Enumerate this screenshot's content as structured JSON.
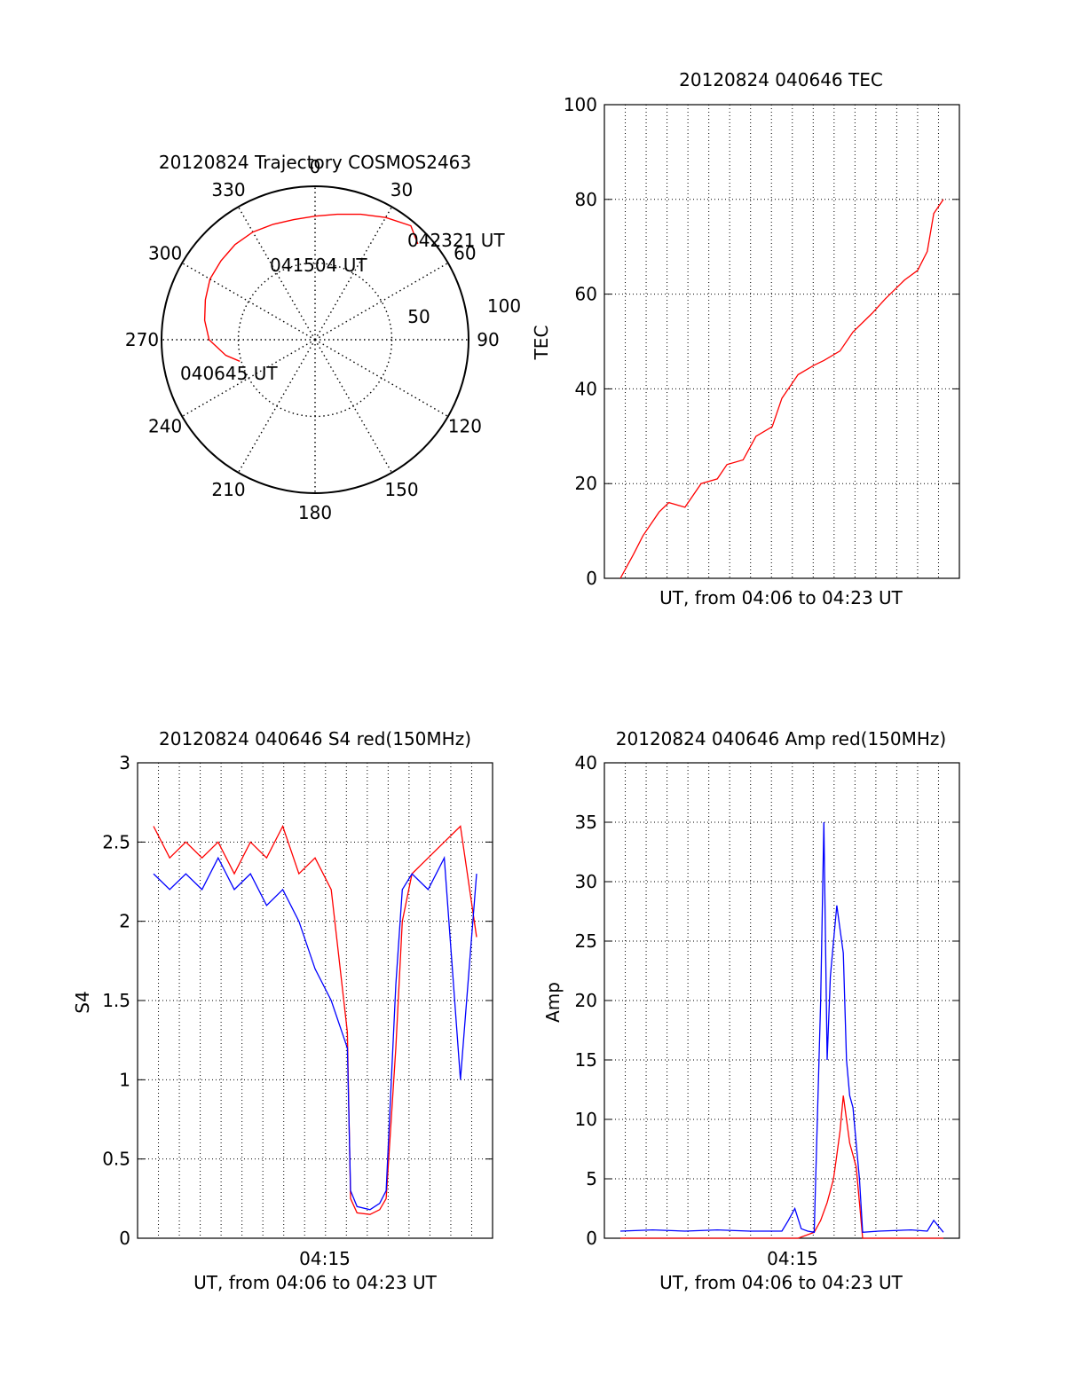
{
  "colors": {
    "red": "#ff0000",
    "blue": "#0000ff",
    "axis": "#000000",
    "grid": "#000000"
  },
  "chart_data": [
    {
      "type": "polar",
      "title": "20120824 Trajectory COSMOS2463",
      "angle_ticks": [
        "0",
        "30",
        "60",
        "90",
        "120",
        "150",
        "180",
        "210",
        "240",
        "270",
        "300",
        "330"
      ],
      "radius_labels": [
        "50",
        "100"
      ],
      "rlim": [
        0,
        100
      ],
      "grid": true,
      "series": [
        {
          "color": "red",
          "azimuth": [
            47,
            40,
            30,
            20,
            10,
            0,
            -10,
            -20,
            -30,
            -40,
            -50,
            -60,
            -70,
            -80,
            -90,
            -100,
            -106
          ],
          "elevation_offset": [
            8.5,
            3.0,
            8.0,
            13.0,
            17.0,
            19.5,
            20.5,
            20.0,
            19.0,
            19.0,
            20.0,
            21.0,
            24.0,
            27.0,
            31.0,
            41.0,
            49.0
          ]
        }
      ],
      "annotations": [
        "042321 UT",
        "041504 UT",
        "040645 UT"
      ]
    },
    {
      "type": "line",
      "title": "20120824 040646 TEC",
      "xlabel": "UT, from 04:06 to 04:23 UT",
      "ylabel": "TEC",
      "ylim": [
        0,
        100
      ],
      "yticks": [
        "0",
        "20",
        "40",
        "60",
        "80",
        "100"
      ],
      "grid": true,
      "series": [
        {
          "color": "red",
          "x": [
            0.0,
            0.04,
            0.07,
            0.12,
            0.15,
            0.2,
            0.25,
            0.3,
            0.33,
            0.38,
            0.42,
            0.47,
            0.5,
            0.55,
            0.6,
            0.63,
            0.68,
            0.72,
            0.78,
            0.82,
            0.88,
            0.92,
            0.95,
            0.97,
            1.0
          ],
          "y": [
            0,
            5,
            9,
            14,
            16,
            15,
            20,
            21,
            24,
            25,
            30,
            32,
            38,
            43,
            45,
            46,
            48,
            52,
            56,
            59,
            63,
            65,
            69,
            77,
            80
          ]
        }
      ]
    },
    {
      "type": "line",
      "title": "20120824 040646 S4 red(150MHz)",
      "xlabel": "UT, from 04:06 to 04:23 UT",
      "ylabel": "S4",
      "ylim": [
        0,
        3
      ],
      "yticks": [
        "0",
        "0.5",
        "1",
        "1.5",
        "2",
        "2.5",
        "3"
      ],
      "xticks": [
        "04:15"
      ],
      "grid": true,
      "series": [
        {
          "color": "red",
          "x": [
            0.0,
            0.05,
            0.1,
            0.15,
            0.2,
            0.25,
            0.3,
            0.35,
            0.4,
            0.45,
            0.5,
            0.55,
            0.6,
            0.61,
            0.63,
            0.67,
            0.7,
            0.72,
            0.75,
            0.77,
            0.8,
            0.85,
            0.9,
            0.95,
            1.0
          ],
          "y": [
            2.6,
            2.4,
            2.5,
            2.4,
            2.5,
            2.3,
            2.5,
            2.4,
            2.6,
            2.3,
            2.4,
            2.2,
            1.3,
            0.25,
            0.16,
            0.15,
            0.18,
            0.25,
            1.2,
            2.0,
            2.3,
            2.4,
            2.5,
            2.6,
            1.9
          ]
        },
        {
          "color": "blue",
          "x": [
            0.0,
            0.05,
            0.1,
            0.15,
            0.2,
            0.25,
            0.3,
            0.35,
            0.4,
            0.45,
            0.5,
            0.55,
            0.6,
            0.61,
            0.63,
            0.67,
            0.7,
            0.72,
            0.75,
            0.77,
            0.8,
            0.85,
            0.9,
            0.95,
            1.0
          ],
          "y": [
            2.3,
            2.2,
            2.3,
            2.2,
            2.4,
            2.2,
            2.3,
            2.1,
            2.2,
            2.0,
            1.7,
            1.5,
            1.2,
            0.3,
            0.2,
            0.18,
            0.22,
            0.3,
            1.6,
            2.2,
            2.3,
            2.2,
            2.4,
            1.0,
            2.3
          ]
        }
      ]
    },
    {
      "type": "line",
      "title": "20120824 040646 Amp red(150MHz)",
      "xlabel": "UT, from 04:06 to 04:23 UT",
      "ylabel": "Amp",
      "ylim": [
        0,
        40
      ],
      "yticks": [
        "0",
        "5",
        "10",
        "15",
        "20",
        "25",
        "30",
        "35",
        "40"
      ],
      "xticks": [
        "04:15"
      ],
      "grid": true,
      "series": [
        {
          "color": "red",
          "x": [
            0.0,
            0.55,
            0.6,
            0.62,
            0.64,
            0.65,
            0.66,
            0.67,
            0.68,
            0.69,
            0.7,
            0.71,
            0.72,
            0.73,
            0.74,
            0.75,
            1.0
          ],
          "y": [
            0,
            0,
            0.5,
            1.5,
            3,
            4,
            5,
            7,
            9,
            12,
            10,
            8,
            7,
            6,
            3,
            0,
            0
          ]
        },
        {
          "color": "blue",
          "x": [
            0.0,
            0.1,
            0.2,
            0.3,
            0.4,
            0.5,
            0.52,
            0.54,
            0.56,
            0.58,
            0.6,
            0.62,
            0.63,
            0.64,
            0.65,
            0.66,
            0.67,
            0.68,
            0.69,
            0.7,
            0.71,
            0.72,
            0.73,
            0.74,
            0.75,
            0.8,
            0.9,
            0.95,
            0.97,
            1.0
          ],
          "y": [
            0.6,
            0.7,
            0.6,
            0.7,
            0.6,
            0.6,
            1.5,
            2.5,
            0.8,
            0.6,
            0.5,
            20,
            35,
            15,
            22,
            25,
            28,
            26,
            24,
            15,
            12,
            11,
            8,
            5,
            0.5,
            0.6,
            0.7,
            0.6,
            1.5,
            0.5
          ]
        }
      ]
    }
  ]
}
